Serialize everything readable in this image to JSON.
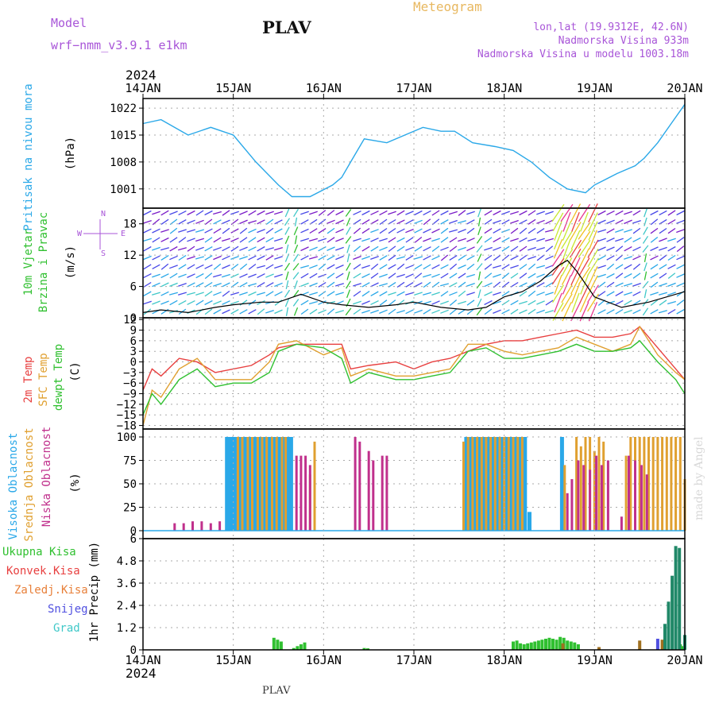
{
  "header": {
    "model_label": "Model",
    "model_run": "wrf−nmm_v3.9.1  e1km",
    "station": "PLAV",
    "product": "Meteogram",
    "location": "lon,lat (19.9312E, 42.6N)",
    "elevation": "Nadmorska Visina 933m",
    "model_elevation": "Nadmorska Visina u modelu 1003.18m",
    "bottom_station": "PLAV",
    "credit": "made by Angel"
  },
  "colors": {
    "pressure": "#2aa8e8",
    "temp": "#e84040",
    "sfc": "#e0a030",
    "dewpt": "#30c030",
    "high_cloud": "#2aa8e8",
    "mid_cloud": "#e0a030",
    "low_cloud": "#c0308c",
    "precip_total": "#30c030",
    "precip_conv": "#e84040",
    "precip_frozen": "#e8803a",
    "snow": "#5050e0",
    "hail": "#40c8c8"
  },
  "chart_data": [
    {
      "type": "line",
      "panel": "pressure",
      "year": "2024",
      "x_labels": [
        "14JAN",
        "15JAN",
        "16JAN",
        "17JAN",
        "18JAN",
        "19JAN",
        "20JAN"
      ],
      "ylabel_lines": [
        "Pritisak na nivou mora",
        "(hPa)"
      ],
      "yticks": [
        "1001",
        "1008",
        "1015",
        "1022"
      ],
      "ylim": [
        996,
        1024.5
      ],
      "x_days": [
        0,
        0.2,
        0.5,
        0.75,
        1.0,
        1.25,
        1.5,
        1.65,
        1.85,
        2.1,
        2.2,
        2.3,
        2.45,
        2.7,
        2.9,
        3.1,
        3.3,
        3.45,
        3.65,
        3.9,
        4.1,
        4.3,
        4.5,
        4.7,
        4.9,
        5.0,
        5.25,
        5.45,
        5.55,
        5.7,
        5.85,
        6.0
      ],
      "series": [
        {
          "values": [
            1018,
            1019,
            1015,
            1017,
            1015,
            1008,
            1002,
            999,
            999,
            1002,
            1004,
            1008,
            1014,
            1013,
            1015,
            1017,
            1016,
            1016,
            1013,
            1012,
            1011,
            1008,
            1004,
            1001,
            1000,
            1002,
            1005,
            1007,
            1009,
            1013,
            1018,
            1023
          ]
        }
      ],
      "grid": true
    },
    {
      "type": "line",
      "panel": "wind",
      "ylabel_lines": [
        "10m Vjetar",
        "Brzina i Pravac",
        "(m/s)"
      ],
      "compass": [
        "N",
        "W",
        "E",
        "S"
      ],
      "yticks": [
        "0",
        "6",
        "12",
        "18"
      ],
      "ylim": [
        0,
        21
      ],
      "x_days": [
        0,
        0.2,
        0.5,
        0.8,
        1.0,
        1.3,
        1.5,
        1.75,
        2.0,
        2.2,
        2.5,
        2.8,
        3.0,
        3.3,
        3.6,
        3.8,
        4.0,
        4.2,
        4.4,
        4.6,
        4.7,
        4.8,
        5.0,
        5.3,
        5.6,
        5.8,
        6.0
      ],
      "series": [
        {
          "values": [
            1,
            1.5,
            1,
            2,
            2.5,
            3,
            3,
            4.5,
            3,
            2.5,
            2,
            2.5,
            3,
            2,
            1.5,
            2,
            4,
            5,
            7,
            10,
            11,
            9,
            4,
            2,
            3,
            4,
            5
          ]
        }
      ],
      "grid": true
    },
    {
      "type": "line",
      "panel": "temperature",
      "ylabel_lines": [
        "2m Temp",
        "SFC Temp",
        "dewpt Temp",
        "(C)"
      ],
      "yticks": [
        "12",
        "9",
        "6",
        "3",
        "0",
        "−3",
        "−6",
        "−9",
        "−12",
        "−15",
        "−18"
      ],
      "ylim": [
        -19,
        12.5
      ],
      "x_days": [
        0,
        0.1,
        0.2,
        0.4,
        0.6,
        0.8,
        1.0,
        1.2,
        1.4,
        1.5,
        1.7,
        2.0,
        2.2,
        2.3,
        2.5,
        2.8,
        3.0,
        3.2,
        3.4,
        3.6,
        3.8,
        4.0,
        4.2,
        4.4,
        4.6,
        4.8,
        5.0,
        5.2,
        5.4,
        5.5,
        5.7,
        5.9,
        6.0
      ],
      "series": [
        {
          "name": "2m Temp",
          "values": [
            -8,
            -2,
            -4,
            1,
            0,
            -3,
            -2,
            -1,
            2,
            4,
            5,
            5,
            5,
            -2,
            -1,
            0,
            -2,
            0,
            1,
            3,
            5,
            6,
            6,
            7,
            8,
            9,
            7,
            7,
            8,
            10,
            4,
            -2,
            -5
          ]
        },
        {
          "name": "SFC Temp",
          "values": [
            -18,
            -8,
            -10,
            -2,
            1,
            -5,
            -5,
            -5,
            0,
            5,
            6,
            2,
            4,
            -4,
            -2,
            -4,
            -4,
            -3,
            -2,
            5,
            5,
            3,
            2,
            3,
            4,
            7,
            5,
            3,
            5,
            10,
            2,
            -3,
            -5
          ]
        },
        {
          "name": "dewpt Temp",
          "values": [
            -15,
            -9,
            -12,
            -5,
            -2,
            -7,
            -6,
            -6,
            -3,
            3,
            5,
            4,
            1,
            -6,
            -3,
            -5,
            -5,
            -4,
            -3,
            3,
            4,
            1,
            1,
            2,
            3,
            5,
            3,
            3,
            4,
            6,
            0,
            -5,
            -9
          ]
        }
      ],
      "grid": true
    },
    {
      "type": "bar",
      "panel": "clouds",
      "ylabel_lines": [
        "Visoka Oblacnost",
        "Srednja Oblacnost",
        "Niska Oblacnost",
        "(%)"
      ],
      "yticks": [
        "0",
        "25",
        "50",
        "75",
        "100"
      ],
      "ylim": [
        0,
        100
      ],
      "series": [
        {
          "name": "Visoka Oblacnost",
          "x_days": [
            0.93,
            0.96,
            0.99,
            1.02,
            1.08,
            1.13,
            1.19,
            1.24,
            1.29,
            1.35,
            1.4,
            1.46,
            1.51,
            1.56,
            1.6,
            1.64,
            3.58,
            3.62,
            3.67,
            3.73,
            3.78,
            3.83,
            3.88,
            3.93,
            3.98,
            4.03,
            4.08,
            4.13,
            4.18,
            4.23,
            4.28,
            4.64
          ],
          "values": [
            100,
            100,
            100,
            100,
            100,
            100,
            100,
            100,
            100,
            100,
            100,
            100,
            100,
            100,
            100,
            100,
            100,
            100,
            100,
            100,
            100,
            100,
            100,
            100,
            100,
            100,
            100,
            100,
            100,
            100,
            20,
            100
          ]
        },
        {
          "name": "Srednja Oblacnost",
          "x_days": [
            1.05,
            1.1,
            1.16,
            1.21,
            1.27,
            1.32,
            1.37,
            1.43,
            1.48,
            1.54,
            1.58,
            1.85,
            1.9,
            3.55,
            3.6,
            3.65,
            3.7,
            3.75,
            3.8,
            3.85,
            3.9,
            3.95,
            4.0,
            4.05,
            4.1,
            4.15,
            4.2,
            4.67,
            4.8,
            4.85,
            4.9,
            4.95,
            5.0,
            5.05,
            5.1,
            5.35,
            5.4,
            5.45,
            5.5,
            5.55,
            5.6,
            5.65,
            5.7,
            5.75,
            5.8,
            5.85,
            5.9,
            5.95,
            6.0
          ],
          "values": [
            100,
            100,
            100,
            100,
            100,
            100,
            100,
            100,
            100,
            100,
            100,
            60,
            95,
            95,
            100,
            100,
            100,
            100,
            100,
            100,
            100,
            100,
            100,
            100,
            100,
            100,
            100,
            70,
            100,
            90,
            100,
            100,
            85,
            100,
            95,
            80,
            100,
            100,
            100,
            100,
            100,
            100,
            100,
            100,
            100,
            100,
            100,
            100,
            55
          ]
        },
        {
          "name": "Niska Oblacnost",
          "x_days": [
            0.35,
            0.45,
            0.55,
            0.65,
            0.75,
            0.85,
            1.7,
            1.75,
            1.8,
            1.85,
            2.35,
            2.4,
            2.5,
            2.55,
            2.65,
            2.7,
            4.7,
            4.75,
            4.82,
            4.88,
            4.95,
            5.02,
            5.08,
            5.15,
            5.3,
            5.38,
            5.45,
            5.52,
            5.58
          ],
          "values": [
            8,
            8,
            10,
            10,
            8,
            10,
            80,
            80,
            80,
            70,
            100,
            95,
            85,
            75,
            80,
            80,
            40,
            55,
            75,
            70,
            65,
            80,
            70,
            75,
            15,
            80,
            75,
            70,
            60
          ]
        }
      ],
      "grid": true
    },
    {
      "type": "bar",
      "panel": "precipitation",
      "ylabel_lines": [
        "1hr Precip (mm)"
      ],
      "legend": [
        "Ukupna Kisa",
        "Konvek.Kisa",
        "Zaledj.Kisa",
        "Snijeg",
        "Grad"
      ],
      "yticks": [
        "0",
        "1.2",
        "2.4",
        "3.6",
        "4.8",
        "6"
      ],
      "ylim": [
        0,
        6
      ],
      "x_labels": [
        "14JAN",
        "15JAN",
        "16JAN",
        "17JAN",
        "18JAN",
        "19JAN",
        "20JAN"
      ],
      "year": "2024",
      "series": [
        {
          "name": "Ukupna Kisa",
          "x_days": [
            1.45,
            1.49,
            1.53,
            1.67,
            1.71,
            1.75,
            1.79,
            2.45,
            2.49,
            4.1,
            4.14,
            4.18,
            4.22,
            4.26,
            4.3,
            4.34,
            4.38,
            4.42,
            4.46,
            4.5,
            4.54,
            4.58,
            4.62,
            4.66,
            4.7,
            4.74,
            4.78,
            4.82,
            5.95,
            5.98
          ],
          "values": [
            0.65,
            0.55,
            0.45,
            0.1,
            0.2,
            0.3,
            0.4,
            0.1,
            0.08,
            0.45,
            0.5,
            0.35,
            0.3,
            0.35,
            0.4,
            0.45,
            0.5,
            0.55,
            0.6,
            0.65,
            0.6,
            0.55,
            0.7,
            0.65,
            0.5,
            0.45,
            0.4,
            0.3,
            0.3,
            0.2
          ]
        },
        {
          "name": "Zaledj.Kisa",
          "x_days": [
            4.65,
            5.05,
            5.5,
            5.75
          ],
          "values": [
            0.35,
            0.15,
            0.5,
            0.55
          ]
        },
        {
          "name": "Snijeg",
          "x_days": [
            5.7
          ],
          "values": [
            0.6
          ]
        },
        {
          "name": "Grad",
          "x_days": [
            5.78,
            5.82,
            5.86,
            5.9,
            5.94,
            6.0
          ],
          "values": [
            1.4,
            2.6,
            4.0,
            5.6,
            5.5,
            0.8
          ]
        }
      ],
      "grid": true
    }
  ]
}
